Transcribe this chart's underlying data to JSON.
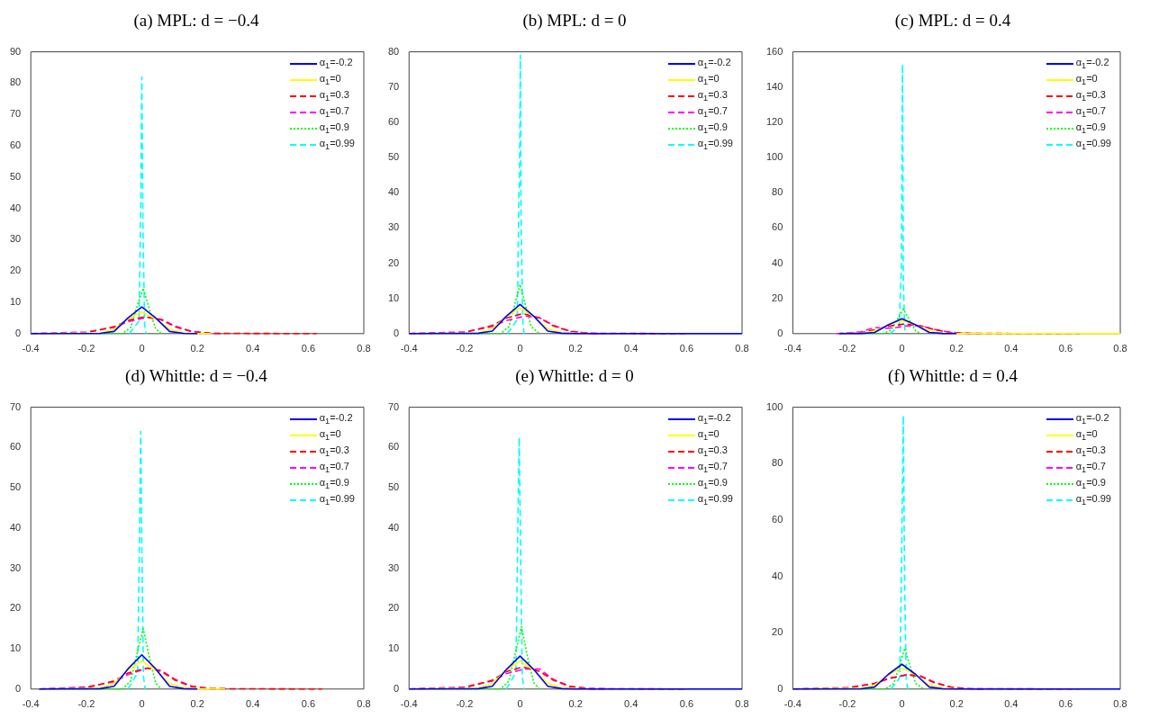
{
  "chart_data": [
    {
      "type": "line",
      "title": "(a) MPL: d = −0.4",
      "xlim": [
        -0.4,
        0.8
      ],
      "xticks": [
        -0.4,
        -0.2,
        0,
        0.2,
        0.4,
        0.6,
        0.8
      ],
      "ylim": [
        0,
        90
      ],
      "yticks": [
        0,
        10,
        20,
        30,
        40,
        50,
        60,
        70,
        80,
        90
      ],
      "grid": false,
      "legend": "top right",
      "marker": "none",
      "series": [
        {
          "name": "α$_{1}$=-0.2",
          "color": "#0000ff",
          "line_style": "solid",
          "x": [
            -0.4,
            -0.15,
            -0.1,
            -0.05,
            0,
            0.05,
            0.1,
            0.15,
            0.2
          ],
          "values": [
            0,
            0.1,
            0.7,
            5,
            8.5,
            5,
            0.7,
            0.1,
            0
          ]
        },
        {
          "name": "α$_{1}$=0",
          "color": "#ffff00",
          "line_style": "solid",
          "x": [
            -0.4,
            -0.15,
            -0.1,
            -0.05,
            0,
            0.05,
            0.1,
            0.15,
            0.2,
            0.25
          ],
          "values": [
            0,
            0.2,
            1.4,
            4.7,
            7,
            4.7,
            1.4,
            0.3,
            0.1,
            0
          ]
        },
        {
          "name": "α$_{1}$=0.3",
          "color": "#ff0000",
          "line_style": "dashed",
          "x": [
            -0.4,
            -0.2,
            -0.1,
            -0.05,
            0.01,
            0.07,
            0.12,
            0.18,
            0.25,
            0.63
          ],
          "values": [
            0,
            0.3,
            2.2,
            4.2,
            5.4,
            4.4,
            2.2,
            0.6,
            0.1,
            0
          ]
        },
        {
          "name": "α$_{1}$=0.7",
          "color": "#ff00ff",
          "line_style": "dashed",
          "x": [
            -0.4,
            -0.2,
            -0.1,
            -0.05,
            0.02,
            0.07,
            0.12,
            0.18,
            0.25,
            0.3
          ],
          "values": [
            0,
            0.5,
            2,
            3.8,
            5.2,
            4.6,
            2.4,
            0.7,
            0.1,
            0
          ]
        },
        {
          "name": "α$_{1}$=0.9",
          "color": "#00ff00",
          "line_style": "dotted",
          "x": [
            -0.4,
            -0.07,
            -0.04,
            -0.02,
            0.005,
            0.03,
            0.05,
            0.07
          ],
          "values": [
            0,
            0,
            2,
            8,
            14.5,
            7,
            1.5,
            0
          ]
        },
        {
          "name": "α$_{1}$=0.99",
          "color": "#00ffff",
          "line_style": "dashed",
          "x": [
            -0.045,
            -0.01,
            -0.004,
            0,
            0.004,
            0.01,
            0.015
          ],
          "values": [
            0,
            4,
            40,
            82,
            35,
            3,
            0
          ]
        }
      ]
    },
    {
      "type": "line",
      "title": "(b) MPL: d = 0",
      "xlim": [
        -0.4,
        0.8
      ],
      "xticks": [
        -0.4,
        -0.2,
        0,
        0.2,
        0.4,
        0.6,
        0.8
      ],
      "ylim": [
        0,
        80
      ],
      "yticks": [
        0,
        10,
        20,
        30,
        40,
        50,
        60,
        70,
        80
      ],
      "grid": false,
      "legend": "top right",
      "marker": "none",
      "series": [
        {
          "name": "α$_{1}$=-0.2",
          "color": "#0000ff",
          "line_style": "solid",
          "x": [
            -0.4,
            -0.15,
            -0.1,
            -0.05,
            0,
            0.05,
            0.1,
            0.15,
            0.2,
            0.8
          ],
          "values": [
            0,
            0.1,
            0.7,
            4.9,
            8.3,
            4.9,
            0.7,
            0.1,
            0,
            0
          ]
        },
        {
          "name": "α$_{1}$=0",
          "color": "#ffff00",
          "line_style": "solid",
          "x": [
            -0.4,
            -0.15,
            -0.1,
            -0.05,
            0,
            0.05,
            0.1,
            0.15,
            0.2,
            0.25
          ],
          "values": [
            0,
            0.2,
            1.4,
            4.8,
            7.3,
            4.8,
            1.4,
            0.3,
            0.1,
            0
          ]
        },
        {
          "name": "α$_{1}$=0.3",
          "color": "#ff0000",
          "line_style": "dashed",
          "x": [
            -0.4,
            -0.2,
            -0.1,
            -0.05,
            0.01,
            0.07,
            0.12,
            0.18,
            0.25,
            0.6
          ],
          "values": [
            0,
            0.3,
            2.3,
            4.4,
            5.7,
            4.5,
            2.2,
            0.6,
            0.1,
            0
          ]
        },
        {
          "name": "α$_{1}$=0.7",
          "color": "#ff00ff",
          "line_style": "dashed",
          "x": [
            -0.4,
            -0.2,
            -0.1,
            -0.05,
            0.02,
            0.07,
            0.12,
            0.18,
            0.25,
            0.3
          ],
          "values": [
            0,
            0.5,
            2,
            3.7,
            5,
            4.5,
            2.4,
            0.7,
            0.1,
            0
          ]
        },
        {
          "name": "α$_{1}$=0.9",
          "color": "#00ff00",
          "line_style": "dotted",
          "x": [
            -0.4,
            -0.07,
            -0.04,
            -0.02,
            0,
            0.02,
            0.04,
            0.07
          ],
          "values": [
            0,
            0,
            2,
            8,
            14,
            8,
            2,
            0
          ]
        },
        {
          "name": "α$_{1}$=0.99",
          "color": "#00ffff",
          "line_style": "dashed",
          "x": [
            -0.045,
            -0.01,
            -0.004,
            -0.002,
            0.001,
            0.004,
            0.01,
            0.015
          ],
          "values": [
            0,
            4,
            40,
            42,
            79,
            30,
            3,
            0
          ]
        }
      ]
    },
    {
      "type": "line",
      "title": "(c) MPL: d = 0.4",
      "xlim": [
        -0.4,
        0.8
      ],
      "xticks": [
        -0.4,
        -0.2,
        0,
        0.2,
        0.4,
        0.6,
        0.8
      ],
      "ylim": [
        0,
        160
      ],
      "yticks": [
        0,
        20,
        40,
        60,
        80,
        100,
        120,
        140,
        160
      ],
      "grid": false,
      "legend": "top right",
      "marker": "none",
      "series": [
        {
          "name": "α$_{1}$=-0.2",
          "color": "#0000ff",
          "line_style": "solid",
          "x": [
            -0.23,
            -0.15,
            -0.1,
            -0.05,
            0,
            0.05,
            0.1,
            0.15,
            0.2
          ],
          "values": [
            0,
            0.1,
            0.7,
            5,
            8.5,
            5,
            0.7,
            0.1,
            0
          ]
        },
        {
          "name": "α$_{1}$=0",
          "color": "#ffff00",
          "line_style": "solid",
          "x": [
            -0.23,
            -0.15,
            -0.1,
            -0.05,
            0,
            0.05,
            0.1,
            0.15,
            0.2,
            0.8
          ],
          "values": [
            0,
            0.2,
            1.4,
            5,
            7.5,
            5,
            1.4,
            0.3,
            0.1,
            0
          ]
        },
        {
          "name": "α$_{1}$=0.3",
          "color": "#ff0000",
          "line_style": "dashed",
          "x": [
            -0.23,
            -0.15,
            -0.1,
            -0.05,
            0.01,
            0.07,
            0.12,
            0.18,
            0.25,
            0.65
          ],
          "values": [
            0,
            0.6,
            2.2,
            4.2,
            5.5,
            4.4,
            2.2,
            0.6,
            0.1,
            0
          ]
        },
        {
          "name": "α$_{1}$=0.7",
          "color": "#ff00ff",
          "line_style": "dashed",
          "x": [
            -0.24,
            -0.15,
            -0.1,
            -0.06,
            -0.02,
            0.02,
            0.07,
            0.12,
            0.18,
            0.25,
            0.3
          ],
          "values": [
            0,
            1,
            3.5,
            3,
            3.5,
            4.5,
            4.3,
            2.4,
            0.7,
            0.1,
            0
          ]
        },
        {
          "name": "α$_{1}$=0.9",
          "color": "#00ff00",
          "line_style": "dotted",
          "x": [
            -0.23,
            -0.07,
            -0.04,
            -0.02,
            0.005,
            0.03,
            0.05,
            0.07
          ],
          "values": [
            0,
            0,
            2,
            7,
            14,
            7,
            1.5,
            0
          ]
        },
        {
          "name": "α$_{1}$=0.99",
          "color": "#00ffff",
          "line_style": "dashed",
          "x": [
            -0.045,
            -0.01,
            -0.004,
            -0.002,
            0.002,
            0.005,
            0.01,
            0.015
          ],
          "values": [
            0,
            4,
            30,
            36,
            153,
            30,
            3,
            0
          ]
        }
      ]
    },
    {
      "type": "line",
      "title": "(d) Whittle: d = −0.4",
      "xlim": [
        -0.4,
        0.8
      ],
      "xticks": [
        -0.4,
        -0.2,
        0,
        0.2,
        0.4,
        0.6,
        0.8
      ],
      "ylim": [
        0,
        70
      ],
      "yticks": [
        0,
        10,
        20,
        30,
        40,
        50,
        60,
        70
      ],
      "grid": false,
      "legend": "top right",
      "marker": "none",
      "series": [
        {
          "name": "α$_{1}$=-0.2",
          "color": "#0000ff",
          "line_style": "solid",
          "x": [
            -0.37,
            -0.15,
            -0.1,
            -0.05,
            0,
            0.05,
            0.1,
            0.15,
            0.2
          ],
          "values": [
            0,
            0.1,
            0.7,
            5,
            8.5,
            5,
            0.7,
            0.1,
            0
          ]
        },
        {
          "name": "α$_{1}$=0",
          "color": "#ffff00",
          "line_style": "solid",
          "x": [
            -0.37,
            -0.15,
            -0.1,
            -0.05,
            0,
            0.05,
            0.1,
            0.15,
            0.2,
            0.3
          ],
          "values": [
            0,
            0.2,
            1.4,
            4.7,
            7,
            4.7,
            1.4,
            0.3,
            0.1,
            0
          ]
        },
        {
          "name": "α$_{1}$=0.3",
          "color": "#ff0000",
          "line_style": "dashed",
          "x": [
            -0.37,
            -0.2,
            -0.1,
            -0.05,
            0.02,
            0.07,
            0.12,
            0.18,
            0.25,
            0.65
          ],
          "values": [
            0,
            0.3,
            2,
            4,
            5.2,
            4.4,
            2.2,
            0.6,
            0.1,
            0
          ]
        },
        {
          "name": "α$_{1}$=0.7",
          "color": "#ff00ff",
          "line_style": "dashed",
          "x": [
            -0.37,
            -0.2,
            -0.1,
            -0.05,
            0.02,
            0.07,
            0.12,
            0.18,
            0.25,
            0.3
          ],
          "values": [
            0,
            0.5,
            1.8,
            3.6,
            5.2,
            4.6,
            2.4,
            0.7,
            0.1,
            0
          ]
        },
        {
          "name": "α$_{1}$=0.9",
          "color": "#00ff00",
          "line_style": "dotted",
          "x": [
            -0.37,
            -0.07,
            -0.04,
            -0.02,
            0.005,
            0.03,
            0.05,
            0.07
          ],
          "values": [
            0,
            0,
            2,
            8,
            15,
            7,
            1.5,
            0
          ]
        },
        {
          "name": "α$_{1}$=0.99",
          "color": "#00ffff",
          "line_style": "dashed",
          "x": [
            -0.05,
            -0.015,
            -0.008,
            -0.004,
            0,
            0.006,
            0.012
          ],
          "values": [
            0,
            4,
            40,
            64,
            35,
            3,
            0
          ]
        }
      ]
    },
    {
      "type": "line",
      "title": "(e) Whittle: d = 0",
      "xlim": [
        -0.4,
        0.8
      ],
      "xticks": [
        -0.4,
        -0.2,
        0,
        0.2,
        0.4,
        0.6,
        0.8
      ],
      "ylim": [
        0,
        70
      ],
      "yticks": [
        0,
        10,
        20,
        30,
        40,
        50,
        60,
        70
      ],
      "grid": false,
      "legend": "top right",
      "marker": "none",
      "series": [
        {
          "name": "α$_{1}$=-0.2",
          "color": "#0000ff",
          "line_style": "solid",
          "x": [
            -0.4,
            -0.15,
            -0.1,
            -0.05,
            0,
            0.05,
            0.1,
            0.15,
            0.2,
            0.8
          ],
          "values": [
            0,
            0.1,
            0.7,
            4.8,
            8.2,
            4.8,
            0.7,
            0.1,
            0,
            0
          ]
        },
        {
          "name": "α$_{1}$=0",
          "color": "#ffff00",
          "line_style": "solid",
          "x": [
            -0.4,
            -0.15,
            -0.1,
            -0.05,
            0,
            0.05,
            0.1,
            0.15,
            0.2,
            0.25
          ],
          "values": [
            0,
            0.2,
            1.4,
            4.7,
            7,
            4.7,
            1.4,
            0.3,
            0.1,
            0
          ]
        },
        {
          "name": "α$_{1}$=0.3",
          "color": "#ff0000",
          "line_style": "dashed",
          "x": [
            -0.4,
            -0.2,
            -0.1,
            -0.05,
            0.01,
            0.07,
            0.12,
            0.18,
            0.25,
            0.6
          ],
          "values": [
            0,
            0.3,
            2.2,
            4.3,
            5.5,
            4.4,
            2.2,
            0.6,
            0.1,
            0
          ]
        },
        {
          "name": "α$_{1}$=0.7",
          "color": "#ff00ff",
          "line_style": "dashed",
          "x": [
            -0.4,
            -0.2,
            -0.1,
            -0.05,
            0.02,
            0.07,
            0.12,
            0.18,
            0.25,
            0.3
          ],
          "values": [
            0,
            0.5,
            2,
            3.8,
            5,
            5,
            2.4,
            0.7,
            0.1,
            0
          ]
        },
        {
          "name": "α$_{1}$=0.9",
          "color": "#00ff00",
          "line_style": "dotted",
          "x": [
            -0.4,
            -0.07,
            -0.04,
            -0.02,
            0.005,
            0.03,
            0.05,
            0.07
          ],
          "values": [
            0,
            0,
            2,
            8,
            15.5,
            7,
            1.5,
            0
          ]
        },
        {
          "name": "α$_{1}$=0.99",
          "color": "#00ffff",
          "line_style": "dashed",
          "x": [
            -0.05,
            -0.015,
            -0.008,
            -0.003,
            0.002,
            0.008,
            0.015
          ],
          "values": [
            0,
            4,
            40,
            62.5,
            35,
            3,
            0
          ]
        }
      ]
    },
    {
      "type": "line",
      "title": "(f) Whittle: d = 0.4",
      "xlim": [
        -0.4,
        0.8
      ],
      "xticks": [
        -0.4,
        -0.2,
        0,
        0.2,
        0.4,
        0.6,
        0.8
      ],
      "ylim": [
        0,
        100
      ],
      "yticks": [
        0,
        20,
        40,
        60,
        80,
        100
      ],
      "grid": false,
      "legend": "top right",
      "marker": "none",
      "series": [
        {
          "name": "α$_{1}$=-0.2",
          "color": "#0000ff",
          "line_style": "solid",
          "x": [
            -0.4,
            -0.15,
            -0.1,
            -0.05,
            0,
            0.05,
            0.1,
            0.15,
            0.2,
            0.8
          ],
          "values": [
            0,
            0.1,
            0.7,
            5.2,
            8.8,
            5.2,
            0.7,
            0.1,
            0,
            0
          ]
        },
        {
          "name": "α$_{1}$=0",
          "color": "#ffff00",
          "line_style": "solid",
          "x": [
            -0.4,
            -0.15,
            -0.1,
            -0.05,
            0,
            0.05,
            0.1,
            0.15,
            0.2,
            0.25
          ],
          "values": [
            0,
            0.2,
            1.4,
            5,
            7.5,
            5,
            1.4,
            0.3,
            0.1,
            0
          ]
        },
        {
          "name": "α$_{1}$=0.3",
          "color": "#ff0000",
          "line_style": "dashed",
          "x": [
            -0.4,
            -0.2,
            -0.1,
            -0.05,
            0.02,
            0.07,
            0.12,
            0.18,
            0.25,
            0.65
          ],
          "values": [
            0,
            0.3,
            2,
            3.8,
            5,
            4.4,
            2.2,
            0.6,
            0.1,
            0
          ]
        },
        {
          "name": "α$_{1}$=0.7",
          "color": "#ff00ff",
          "line_style": "dashed",
          "x": [
            -0.4,
            -0.2,
            -0.1,
            -0.05,
            0.02,
            0.07,
            0.12,
            0.18,
            0.25,
            0.3
          ],
          "values": [
            0,
            0.5,
            2,
            3.6,
            5.2,
            4.6,
            2.4,
            0.7,
            0.1,
            0
          ]
        },
        {
          "name": "α$_{1}$=0.9",
          "color": "#00ff00",
          "line_style": "dotted",
          "x": [
            -0.4,
            -0.06,
            -0.03,
            -0.01,
            0.01,
            0.03,
            0.05,
            0.08
          ],
          "values": [
            0,
            0,
            2,
            8,
            14.5,
            8,
            2,
            0
          ]
        },
        {
          "name": "α$_{1}$=0.99",
          "color": "#00ffff",
          "line_style": "dashed",
          "x": [
            -0.04,
            -0.008,
            -0.002,
            0.005,
            0.01,
            0.016,
            0.022
          ],
          "values": [
            0,
            4,
            40,
            97,
            35,
            3,
            0
          ]
        }
      ]
    }
  ]
}
